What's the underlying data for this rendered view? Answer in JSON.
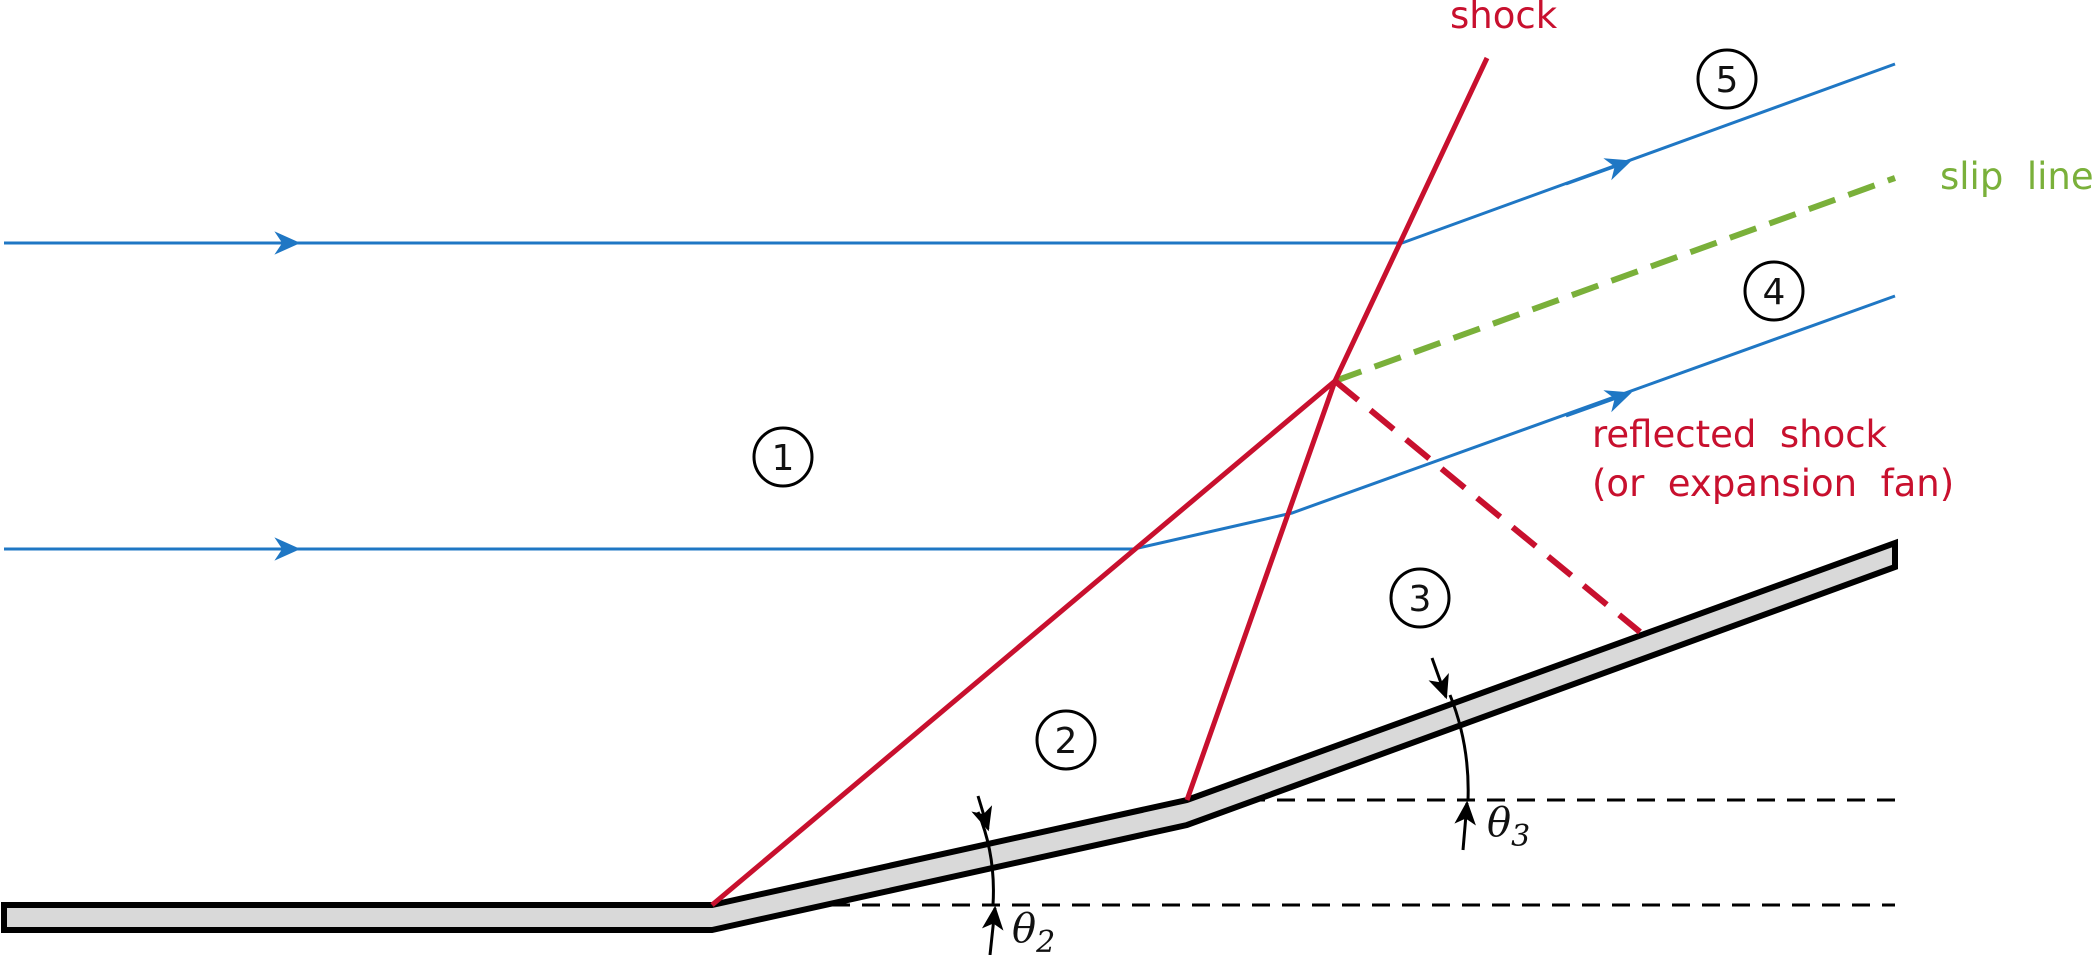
{
  "labels": {
    "shock": "shock",
    "slip_line": "slip  line",
    "reflected_shock": "reflected  shock",
    "expansion_fan": "(or  expansion  fan)"
  },
  "regions": [
    "1",
    "2",
    "3",
    "4",
    "5"
  ],
  "angles": {
    "theta2_symbol": "θ",
    "theta2_sub": "2",
    "theta3_symbol": "θ",
    "theta3_sub": "3"
  },
  "colors": {
    "shock": "#c8102e",
    "streamline": "#1f77c4",
    "slip_line": "#7ab03a",
    "wall_fill": "#d9d9d9",
    "wall_stroke": "#000000"
  }
}
